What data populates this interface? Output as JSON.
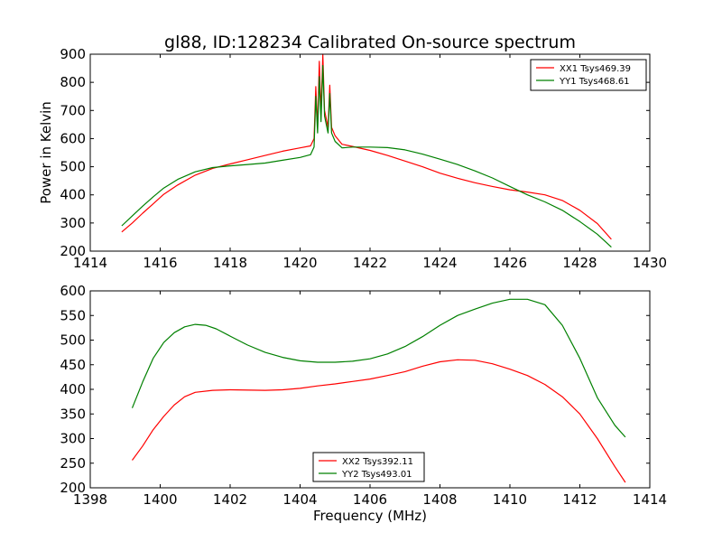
{
  "figure": {
    "title": "gl88, ID:128234 Calibrated On-source spectrum",
    "ylabel": "Power in Kelvin",
    "xlabel": "Frequency (MHz)"
  },
  "chart_data": [
    {
      "type": "line",
      "title": "gl88, ID:128234 Calibrated On-source spectrum",
      "xlabel": "",
      "ylabel": "Power in Kelvin",
      "xlim": [
        1414,
        1430
      ],
      "ylim": [
        200,
        900
      ],
      "xticks": [
        "1414",
        "1416",
        "1418",
        "1420",
        "1422",
        "1424",
        "1426",
        "1428",
        "1430"
      ],
      "yticks": [
        "200",
        "300",
        "400",
        "500",
        "600",
        "700",
        "800",
        "900"
      ],
      "grid": false,
      "legend_position": "top-right",
      "series": [
        {
          "name": "XX1 Tsys469.39",
          "color": "#ff0000",
          "points": [
            [
              1414.9,
              268
            ],
            [
              1415.2,
              300
            ],
            [
              1415.5,
              335
            ],
            [
              1415.8,
              368
            ],
            [
              1416.1,
              402
            ],
            [
              1416.5,
              435
            ],
            [
              1417.0,
              470
            ],
            [
              1417.5,
              494
            ],
            [
              1418.0,
              510
            ],
            [
              1418.5,
              525
            ],
            [
              1419.0,
              540
            ],
            [
              1419.5,
              555
            ],
            [
              1420.0,
              567
            ],
            [
              1420.3,
              574
            ],
            [
              1420.4,
              600
            ],
            [
              1420.45,
              785
            ],
            [
              1420.5,
              640
            ],
            [
              1420.55,
              875
            ],
            [
              1420.6,
              690
            ],
            [
              1420.65,
              900
            ],
            [
              1420.7,
              700
            ],
            [
              1420.8,
              640
            ],
            [
              1420.85,
              790
            ],
            [
              1420.9,
              640
            ],
            [
              1421.0,
              610
            ],
            [
              1421.2,
              580
            ],
            [
              1421.5,
              572
            ],
            [
              1422.0,
              558
            ],
            [
              1422.5,
              540
            ],
            [
              1423.0,
              520
            ],
            [
              1423.5,
              500
            ],
            [
              1424.0,
              477
            ],
            [
              1424.5,
              459
            ],
            [
              1425.0,
              443
            ],
            [
              1425.5,
              430
            ],
            [
              1426.0,
              418
            ],
            [
              1426.5,
              410
            ],
            [
              1427.0,
              400
            ],
            [
              1427.5,
              380
            ],
            [
              1428.0,
              345
            ],
            [
              1428.5,
              298
            ],
            [
              1428.9,
              242
            ]
          ]
        },
        {
          "name": "YY1 Tsys468.61",
          "color": "#008000",
          "points": [
            [
              1414.9,
              290
            ],
            [
              1415.2,
              325
            ],
            [
              1415.5,
              360
            ],
            [
              1415.8,
              393
            ],
            [
              1416.1,
              424
            ],
            [
              1416.5,
              455
            ],
            [
              1417.0,
              482
            ],
            [
              1417.5,
              497
            ],
            [
              1418.0,
              503
            ],
            [
              1418.5,
              508
            ],
            [
              1419.0,
              513
            ],
            [
              1419.5,
              523
            ],
            [
              1420.0,
              533
            ],
            [
              1420.3,
              543
            ],
            [
              1420.4,
              570
            ],
            [
              1420.45,
              750
            ],
            [
              1420.5,
              620
            ],
            [
              1420.55,
              820
            ],
            [
              1420.6,
              660
            ],
            [
              1420.65,
              860
            ],
            [
              1420.7,
              680
            ],
            [
              1420.8,
              620
            ],
            [
              1420.85,
              760
            ],
            [
              1420.9,
              620
            ],
            [
              1421.0,
              590
            ],
            [
              1421.2,
              567
            ],
            [
              1421.5,
              570
            ],
            [
              1422.0,
              570
            ],
            [
              1422.5,
              568
            ],
            [
              1423.0,
              560
            ],
            [
              1423.5,
              545
            ],
            [
              1424.0,
              527
            ],
            [
              1424.5,
              508
            ],
            [
              1425.0,
              485
            ],
            [
              1425.5,
              460
            ],
            [
              1426.0,
              430
            ],
            [
              1426.5,
              400
            ],
            [
              1427.0,
              375
            ],
            [
              1427.5,
              345
            ],
            [
              1428.0,
              305
            ],
            [
              1428.5,
              260
            ],
            [
              1428.9,
              214
            ]
          ]
        }
      ]
    },
    {
      "type": "line",
      "title": "",
      "xlabel": "Frequency (MHz)",
      "ylabel": "",
      "xlim": [
        1398,
        1414
      ],
      "ylim": [
        200,
        600
      ],
      "xticks": [
        "1398",
        "1400",
        "1402",
        "1404",
        "1406",
        "1408",
        "1410",
        "1412",
        "1414"
      ],
      "yticks": [
        "200",
        "250",
        "300",
        "350",
        "400",
        "450",
        "500",
        "550",
        "600"
      ],
      "grid": false,
      "legend_position": "bottom-center",
      "series": [
        {
          "name": "XX2 Tsys392.11",
          "color": "#ff0000",
          "points": [
            [
              1399.2,
              256
            ],
            [
              1399.5,
              285
            ],
            [
              1399.8,
              318
            ],
            [
              1400.1,
              345
            ],
            [
              1400.4,
              368
            ],
            [
              1400.7,
              385
            ],
            [
              1401.0,
              394
            ],
            [
              1401.5,
              398
            ],
            [
              1402.0,
              399
            ],
            [
              1403.0,
              398
            ],
            [
              1403.5,
              399
            ],
            [
              1404.0,
              402
            ],
            [
              1404.5,
              407
            ],
            [
              1405.0,
              411
            ],
            [
              1405.5,
              416
            ],
            [
              1406.0,
              421
            ],
            [
              1406.5,
              428
            ],
            [
              1407.0,
              436
            ],
            [
              1407.5,
              447
            ],
            [
              1408.0,
              456
            ],
            [
              1408.5,
              460
            ],
            [
              1409.0,
              459
            ],
            [
              1409.5,
              452
            ],
            [
              1410.0,
              441
            ],
            [
              1410.5,
              428
            ],
            [
              1411.0,
              410
            ],
            [
              1411.5,
              385
            ],
            [
              1412.0,
              350
            ],
            [
              1412.5,
              300
            ],
            [
              1413.0,
              243
            ],
            [
              1413.3,
              211
            ]
          ]
        },
        {
          "name": "YY2 Tsys493.01",
          "color": "#008000",
          "points": [
            [
              1399.2,
              362
            ],
            [
              1399.5,
              415
            ],
            [
              1399.8,
              463
            ],
            [
              1400.1,
              495
            ],
            [
              1400.4,
              515
            ],
            [
              1400.7,
              527
            ],
            [
              1401.0,
              532
            ],
            [
              1401.3,
              530
            ],
            [
              1401.6,
              523
            ],
            [
              1402.0,
              508
            ],
            [
              1402.5,
              490
            ],
            [
              1403.0,
              475
            ],
            [
              1403.5,
              465
            ],
            [
              1404.0,
              458
            ],
            [
              1404.5,
              455
            ],
            [
              1405.0,
              455
            ],
            [
              1405.5,
              457
            ],
            [
              1406.0,
              462
            ],
            [
              1406.5,
              472
            ],
            [
              1407.0,
              487
            ],
            [
              1407.5,
              507
            ],
            [
              1408.0,
              530
            ],
            [
              1408.5,
              550
            ],
            [
              1409.0,
              563
            ],
            [
              1409.5,
              575
            ],
            [
              1410.0,
              583
            ],
            [
              1410.5,
              583
            ],
            [
              1411.0,
              572
            ],
            [
              1411.5,
              530
            ],
            [
              1412.0,
              463
            ],
            [
              1412.5,
              383
            ],
            [
              1413.0,
              327
            ],
            [
              1413.3,
              303
            ]
          ]
        }
      ]
    }
  ]
}
